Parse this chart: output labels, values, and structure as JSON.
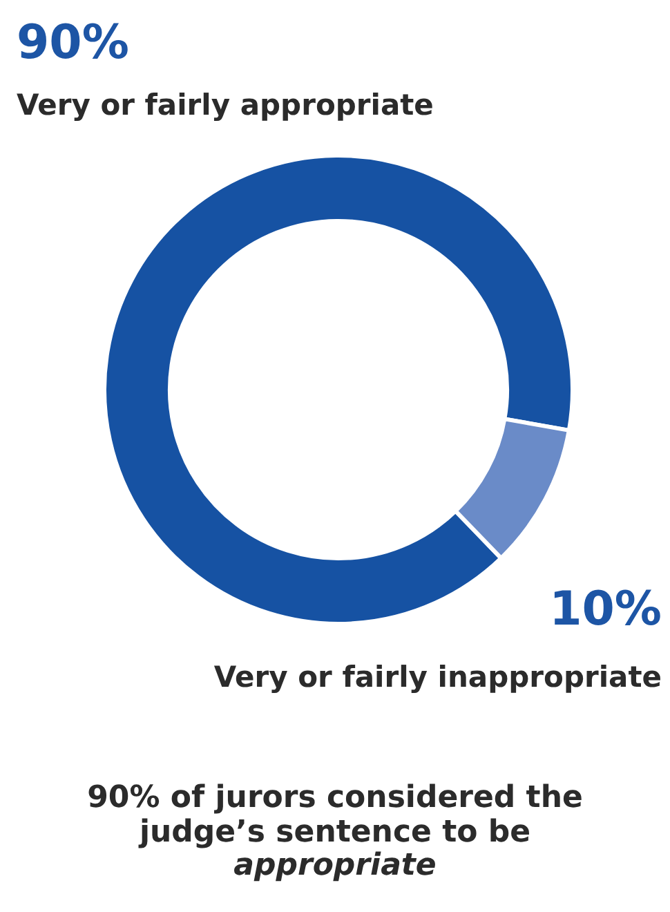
{
  "chart_data": {
    "type": "donut",
    "categories": [
      "Very or fairly appropriate",
      "Very or fairly inappropriate"
    ],
    "values": [
      90,
      10
    ],
    "colors": [
      "#1652a3",
      "#6a8bc8"
    ],
    "value_labels": [
      "90%",
      "10%"
    ],
    "legend": false,
    "annotations": [
      "90% of jurors considered the judge’s sentence to be",
      "appropriate"
    ]
  }
}
